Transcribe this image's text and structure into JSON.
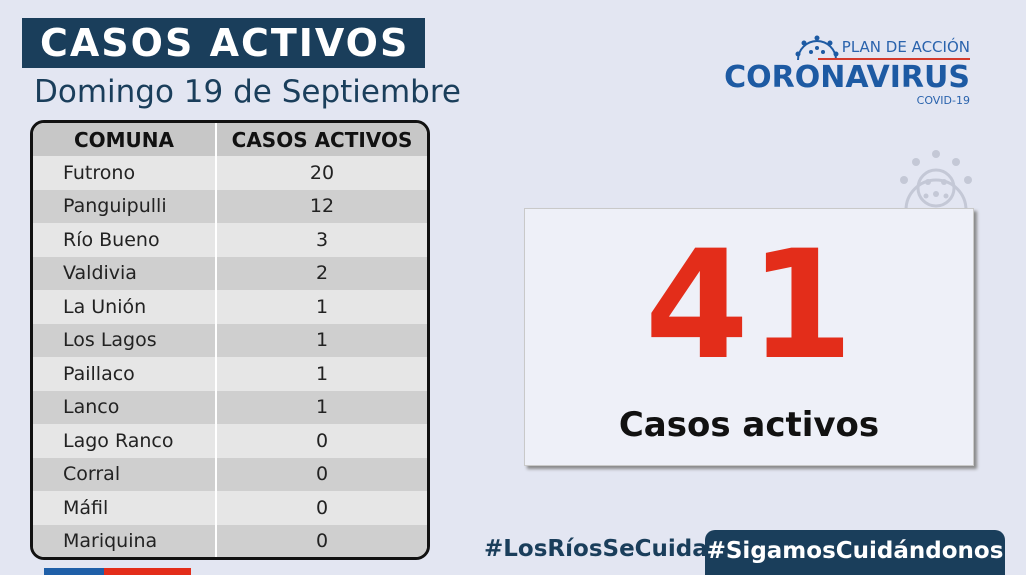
{
  "header": {
    "title": "CASOS ACTIVOS",
    "date": "Domingo 19 de Septiembre"
  },
  "logo": {
    "line1": "PLAN DE ACCIÓN",
    "line2": "CORONAVIRUS",
    "line3": "COVID-19",
    "icon": "virus-icon",
    "colors": {
      "blue": "#1d5aa3",
      "red": "#d33a2c"
    }
  },
  "table": {
    "headers": [
      "COMUNA",
      "CASOS ACTIVOS"
    ],
    "rows": [
      {
        "comuna": "Futrono",
        "casos": "20"
      },
      {
        "comuna": "Panguipulli",
        "casos": "12"
      },
      {
        "comuna": "Río Bueno",
        "casos": "3"
      },
      {
        "comuna": "Valdivia",
        "casos": "2"
      },
      {
        "comuna": "La Unión",
        "casos": "1"
      },
      {
        "comuna": "Los Lagos",
        "casos": "1"
      },
      {
        "comuna": "Paillaco",
        "casos": "1"
      },
      {
        "comuna": "Lanco",
        "casos": "1"
      },
      {
        "comuna": "Lago Ranco",
        "casos": "0"
      },
      {
        "comuna": "Corral",
        "casos": "0"
      },
      {
        "comuna": "Máfil",
        "casos": "0"
      },
      {
        "comuna": "Mariquina",
        "casos": "0"
      }
    ]
  },
  "summary": {
    "total": "41",
    "label": "Casos activos",
    "color": "#e32d1a"
  },
  "footer": {
    "hashtag1": "#LosRíosSeCuida",
    "hashtag2": "#SigamosCuidándonos"
  }
}
